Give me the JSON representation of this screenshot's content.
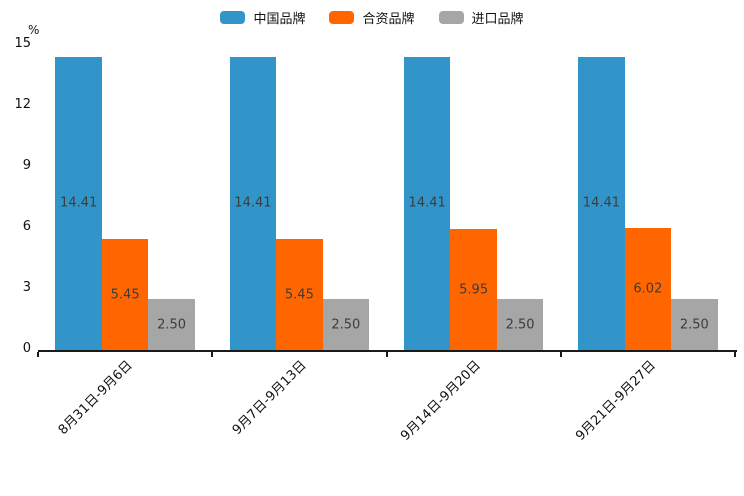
{
  "chart_data": {
    "type": "bar",
    "title": "",
    "ylabel": "%",
    "xlabel": "",
    "categories": [
      "8月31日-9月6日",
      "9月7日-9月13日",
      "9月14日-9月20日",
      "9月21日-9月27日"
    ],
    "series": [
      {
        "name": "中国品牌",
        "color": "#3295c9",
        "values": [
          14.41,
          14.41,
          14.41,
          14.41
        ]
      },
      {
        "name": "合资品牌",
        "color": "#ff6600",
        "values": [
          5.45,
          5.45,
          5.95,
          6.02
        ]
      },
      {
        "name": "进口品牌",
        "color": "#a6a6a6",
        "values": [
          2.5,
          2.5,
          2.5,
          2.5
        ]
      }
    ],
    "value_labels": [
      [
        "14.41",
        "5.45",
        "2.50"
      ],
      [
        "14.41",
        "5.45",
        "2.50"
      ],
      [
        "14.41",
        "5.95",
        "2.50"
      ],
      [
        "14.41",
        "6.02",
        "2.50"
      ]
    ],
    "ylim": [
      0,
      15
    ],
    "yticks": [
      0,
      3,
      6,
      9,
      12,
      15
    ],
    "legend_position": "top",
    "grid": false,
    "axis_color": "#1a1a1a",
    "label_color": "#3d3d3d",
    "background_color": "#ffffff"
  }
}
